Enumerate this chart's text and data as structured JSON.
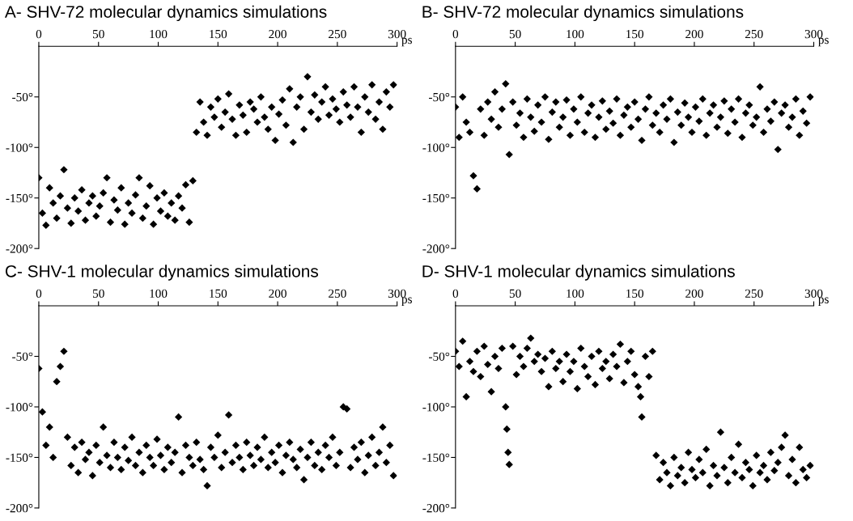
{
  "chart_data": [
    {
      "type": "scatter",
      "title": "A- SHV-72 molecular dynamics simulations",
      "xlabel": "ps",
      "marker": "diamond",
      "color": "#000000",
      "grid": false,
      "legend": false,
      "xlim": [
        0,
        300
      ],
      "xticks": [
        0,
        50,
        100,
        150,
        200,
        250,
        300
      ],
      "ylim": [
        -200,
        0
      ],
      "yticks": [
        {
          "value": -50,
          "label": "-50°"
        },
        {
          "value": -100,
          "label": "-100°"
        },
        {
          "value": -150,
          "label": "-150°"
        },
        {
          "value": -200,
          "label": "-200°"
        }
      ],
      "x": [
        0,
        3,
        6,
        9,
        12,
        15,
        18,
        21,
        24,
        27,
        30,
        33,
        36,
        39,
        42,
        45,
        48,
        51,
        54,
        57,
        60,
        63,
        66,
        69,
        72,
        75,
        78,
        81,
        84,
        87,
        90,
        93,
        96,
        99,
        102,
        105,
        108,
        111,
        114,
        117,
        120,
        123,
        126,
        129,
        132,
        135,
        138,
        141,
        144,
        147,
        150,
        153,
        156,
        159,
        162,
        165,
        168,
        171,
        174,
        177,
        180,
        183,
        186,
        189,
        192,
        195,
        198,
        201,
        204,
        207,
        210,
        213,
        216,
        219,
        222,
        225,
        228,
        231,
        234,
        237,
        240,
        243,
        246,
        249,
        252,
        255,
        258,
        261,
        264,
        267,
        270,
        273,
        276,
        279,
        282,
        285,
        288,
        291,
        294,
        297
      ],
      "values": [
        -130,
        -165,
        -177,
        -140,
        -155,
        -170,
        -148,
        -122,
        -160,
        -175,
        -150,
        -163,
        -142,
        -172,
        -155,
        -148,
        -168,
        -158,
        -145,
        -130,
        -174,
        -152,
        -162,
        -140,
        -176,
        -155,
        -165,
        -147,
        -130,
        -170,
        -158,
        -138,
        -176,
        -150,
        -163,
        -145,
        -168,
        -155,
        -172,
        -148,
        -160,
        -137,
        -174,
        -133,
        -85,
        -55,
        -75,
        -88,
        -60,
        -70,
        -52,
        -80,
        -65,
        -47,
        -72,
        -88,
        -58,
        -68,
        -85,
        -55,
        -62,
        -75,
        -50,
        -70,
        -82,
        -60,
        -93,
        -67,
        -53,
        -78,
        -42,
        -95,
        -60,
        -50,
        -82,
        -30,
        -65,
        -48,
        -72,
        -55,
        -40,
        -68,
        -52,
        -62,
        -75,
        -45,
        -58,
        -70,
        -40,
        -60,
        -85,
        -50,
        -65,
        -38,
        -72,
        -55,
        -82,
        -45,
        -60,
        -38
      ]
    },
    {
      "type": "scatter",
      "title": "B- SHV-72 molecular dynamics simulations",
      "xlabel": "ps",
      "marker": "diamond",
      "color": "#000000",
      "grid": false,
      "legend": false,
      "xlim": [
        0,
        300
      ],
      "xticks": [
        0,
        50,
        100,
        150,
        200,
        250,
        300
      ],
      "ylim": [
        -200,
        0
      ],
      "yticks": [
        {
          "value": -50,
          "label": "-50°"
        },
        {
          "value": -100,
          "label": "-100°"
        },
        {
          "value": -150,
          "label": "-150°"
        },
        {
          "value": -200,
          "label": "-200°"
        }
      ],
      "x": [
        0,
        3,
        6,
        9,
        12,
        15,
        18,
        21,
        24,
        27,
        30,
        33,
        36,
        39,
        42,
        45,
        48,
        51,
        54,
        57,
        60,
        63,
        66,
        69,
        72,
        75,
        78,
        81,
        84,
        87,
        90,
        93,
        96,
        99,
        102,
        105,
        108,
        111,
        114,
        117,
        120,
        123,
        126,
        129,
        132,
        135,
        138,
        141,
        144,
        147,
        150,
        153,
        156,
        159,
        162,
        165,
        168,
        171,
        174,
        177,
        180,
        183,
        186,
        189,
        192,
        195,
        198,
        201,
        204,
        207,
        210,
        213,
        216,
        219,
        222,
        225,
        228,
        231,
        234,
        237,
        240,
        243,
        246,
        249,
        252,
        255,
        258,
        261,
        264,
        267,
        270,
        273,
        276,
        279,
        282,
        285,
        288,
        291,
        294,
        297
      ],
      "values": [
        -60,
        -90,
        -50,
        -75,
        -85,
        -128,
        -141,
        -62,
        -88,
        -55,
        -72,
        -45,
        -80,
        -62,
        -37,
        -107,
        -55,
        -78,
        -66,
        -90,
        -52,
        -70,
        -84,
        -58,
        -75,
        -50,
        -92,
        -65,
        -55,
        -80,
        -70,
        -53,
        -88,
        -62,
        -75,
        -50,
        -85,
        -66,
        -58,
        -90,
        -70,
        -54,
        -82,
        -64,
        -76,
        -52,
        -88,
        -68,
        -60,
        -80,
        -55,
        -72,
        -93,
        -62,
        -50,
        -78,
        -66,
        -85,
        -58,
        -72,
        -52,
        -95,
        -65,
        -78,
        -56,
        -70,
        -85,
        -60,
        -74,
        -52,
        -88,
        -66,
        -58,
        -80,
        -70,
        -54,
        -86,
        -62,
        -75,
        -52,
        -90,
        -66,
        -58,
        -78,
        -70,
        -40,
        -85,
        -62,
        -74,
        -55,
        -102,
        -66,
        -58,
        -80,
        -70,
        -52,
        -88,
        -64,
        -76,
        -50
      ]
    },
    {
      "type": "scatter",
      "title": "C- SHV-1 molecular dynamics simulations",
      "xlabel": "ps",
      "marker": "diamond",
      "color": "#000000",
      "grid": false,
      "legend": false,
      "xlim": [
        0,
        300
      ],
      "xticks": [
        0,
        50,
        100,
        150,
        200,
        250,
        300
      ],
      "ylim": [
        -200,
        0
      ],
      "yticks": [
        {
          "value": -50,
          "label": "-50°"
        },
        {
          "value": -100,
          "label": "-100°"
        },
        {
          "value": -150,
          "label": "-150°"
        },
        {
          "value": -200,
          "label": "-200°"
        }
      ],
      "x": [
        0,
        3,
        6,
        9,
        12,
        15,
        18,
        21,
        24,
        27,
        30,
        33,
        36,
        39,
        42,
        45,
        48,
        51,
        54,
        57,
        60,
        63,
        66,
        69,
        72,
        75,
        78,
        81,
        84,
        87,
        90,
        93,
        96,
        99,
        102,
        105,
        108,
        111,
        114,
        117,
        120,
        123,
        126,
        129,
        132,
        135,
        138,
        141,
        144,
        147,
        150,
        153,
        156,
        159,
        162,
        165,
        168,
        171,
        174,
        177,
        180,
        183,
        186,
        189,
        192,
        195,
        198,
        201,
        204,
        207,
        210,
        213,
        216,
        219,
        222,
        225,
        228,
        231,
        234,
        237,
        240,
        243,
        246,
        249,
        252,
        255,
        258,
        261,
        264,
        267,
        270,
        273,
        276,
        279,
        282,
        285,
        288,
        291,
        294,
        297
      ],
      "values": [
        -62,
        -105,
        -138,
        -120,
        -150,
        -75,
        -60,
        -45,
        -130,
        -158,
        -140,
        -165,
        -135,
        -152,
        -145,
        -168,
        -138,
        -155,
        -120,
        -148,
        -160,
        -135,
        -150,
        -162,
        -140,
        -153,
        -130,
        -158,
        -145,
        -165,
        -138,
        -150,
        -158,
        -132,
        -148,
        -162,
        -140,
        -155,
        -145,
        -110,
        -165,
        -138,
        -150,
        -158,
        -135,
        -152,
        -162,
        -178,
        -140,
        -150,
        -128,
        -160,
        -145,
        -108,
        -155,
        -138,
        -150,
        -162,
        -135,
        -148,
        -158,
        -140,
        -152,
        -130,
        -160,
        -145,
        -155,
        -138,
        -165,
        -148,
        -135,
        -152,
        -160,
        -142,
        -172,
        -150,
        -135,
        -158,
        -145,
        -162,
        -138,
        -150,
        -130,
        -158,
        -145,
        -100,
        -102,
        -160,
        -140,
        -152,
        -135,
        -165,
        -148,
        -130,
        -158,
        -145,
        -120,
        -155,
        -138,
        -168
      ]
    },
    {
      "type": "scatter",
      "title": "D- SHV-1 molecular dynamics simulations",
      "xlabel": "ps",
      "marker": "diamond",
      "color": "#000000",
      "grid": false,
      "legend": false,
      "xlim": [
        0,
        300
      ],
      "xticks": [
        0,
        50,
        100,
        150,
        200,
        250,
        300
      ],
      "ylim": [
        -200,
        0
      ],
      "yticks": [
        {
          "value": -50,
          "label": "-50°"
        },
        {
          "value": -100,
          "label": "-100°"
        },
        {
          "value": -150,
          "label": "-150°"
        },
        {
          "value": -200,
          "label": "-200°"
        }
      ],
      "x": [
        0,
        3,
        6,
        9,
        12,
        15,
        18,
        21,
        24,
        27,
        30,
        33,
        36,
        39,
        42,
        43,
        44,
        45,
        48,
        51,
        54,
        57,
        60,
        63,
        66,
        69,
        72,
        75,
        78,
        81,
        84,
        87,
        90,
        93,
        96,
        99,
        102,
        105,
        108,
        111,
        114,
        117,
        120,
        123,
        126,
        129,
        132,
        135,
        138,
        141,
        144,
        147,
        150,
        153,
        155,
        156,
        159,
        162,
        165,
        168,
        171,
        174,
        177,
        180,
        183,
        186,
        189,
        192,
        195,
        198,
        201,
        204,
        207,
        210,
        213,
        216,
        219,
        222,
        225,
        228,
        231,
        234,
        237,
        240,
        243,
        246,
        249,
        252,
        255,
        258,
        261,
        264,
        267,
        270,
        273,
        276,
        279,
        282,
        285,
        288,
        291,
        294,
        297
      ],
      "values": [
        -45,
        -60,
        -35,
        -90,
        -55,
        -65,
        -45,
        -70,
        -40,
        -58,
        -85,
        -50,
        -62,
        -42,
        -100,
        -122,
        -145,
        -157,
        -40,
        -68,
        -50,
        -60,
        -42,
        -32,
        -55,
        -48,
        -65,
        -52,
        -80,
        -45,
        -62,
        -55,
        -75,
        -48,
        -65,
        -55,
        -82,
        -42,
        -60,
        -70,
        -50,
        -78,
        -45,
        -62,
        -55,
        -72,
        -48,
        -60,
        -38,
        -76,
        -55,
        -45,
        -68,
        -80,
        -90,
        -110,
        -50,
        -70,
        -45,
        -148,
        -172,
        -155,
        -165,
        -178,
        -150,
        -168,
        -160,
        -175,
        -145,
        -162,
        -170,
        -152,
        -165,
        -142,
        -178,
        -158,
        -168,
        -125,
        -160,
        -175,
        -150,
        -165,
        -137,
        -170,
        -155,
        -162,
        -178,
        -148,
        -165,
        -158,
        -172,
        -145,
        -163,
        -155,
        -140,
        -128,
        -168,
        -152,
        -175,
        -140,
        -162,
        -170,
        -158
      ]
    }
  ]
}
